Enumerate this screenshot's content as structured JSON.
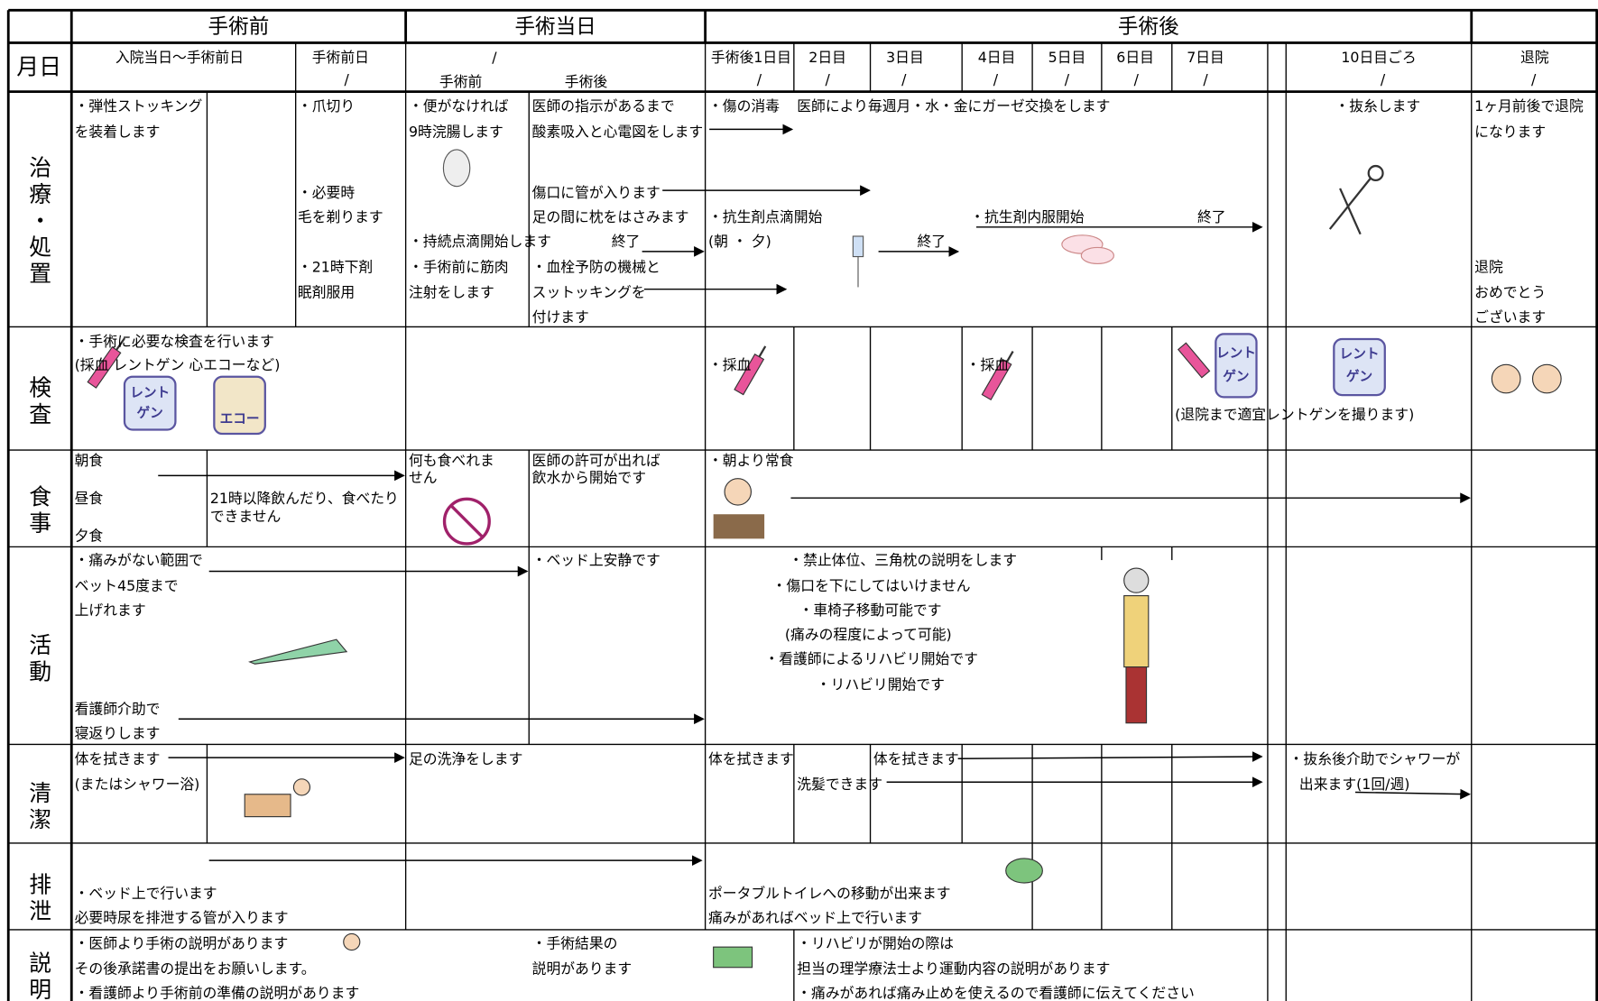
{
  "header": {
    "phases": [
      "手術前",
      "手術当日",
      "手術後"
    ],
    "date_label": "月日",
    "columns": [
      "入院当日〜手術前日",
      "手術前日",
      "手術後1日目",
      "2日目",
      "3日目",
      "4日目",
      "5日目",
      "6日目",
      "7日目",
      "10日目ごろ",
      "退院"
    ],
    "same_day_parts": [
      "手術前",
      "手術後"
    ],
    "date_slashes": [
      "/",
      "/",
      "/",
      "/",
      "/",
      "/",
      "/",
      "/",
      "/",
      "/",
      "/"
    ]
  },
  "rows": [
    {
      "label": "治療・処置",
      "lines": [
        "・弾性ストッキング",
        "を装着します",
        "・爪切り",
        "・必要時",
        "毛を剃ります",
        "・21時下剤",
        "眠剤服用",
        "・便がなければ",
        "9時浣腸します",
        "医師の指示があるまで",
        "酸素吸入と心電図をします",
        "傷口に管が入ります",
        "足の間に枕をはさみます",
        "・持続点滴開始します",
        "終了",
        "・手術前に筋肉",
        "注射をします",
        "・血栓予防の機械と",
        "スットッキングを",
        "付けます",
        "・傷の消毒",
        "医師により毎週月・水・金にガーゼ交換をします",
        "・抗生剤点滴開始",
        "(朝 ・ 夕)",
        "終了",
        "・抗生剤内服開始",
        "終了",
        "・抜糸します",
        "1ヶ月前後で退院",
        "になります",
        "退院",
        "おめでとう",
        "ございます"
      ]
    },
    {
      "label": "検査",
      "lines": [
        "・手術に必要な検査を行います",
        "(採血 レントゲン 心エコーなど)",
        "・採血",
        "・採血",
        "(退院まで適宜レントゲンを撮ります)"
      ]
    },
    {
      "label": "食事",
      "lines": [
        "朝食",
        "昼食",
        "夕食",
        "21時以降飲んだり、食べたり",
        "できません",
        "何も食べれま",
        "せん",
        "医師の許可が出れば",
        "飲水から開始です",
        "・朝より常食"
      ]
    },
    {
      "label": "活動",
      "lines": [
        "・痛みがない範囲で",
        "ベット45度まで",
        "上げれます",
        "看護師介助で",
        "寝返りします",
        "・ベッド上安静です",
        "・禁止体位、三角枕の説明をします",
        "・傷口を下にしてはいけません",
        "・車椅子移動可能です",
        "(痛みの程度によって可能)",
        "・看護師によるリハビリ開始です",
        "・リハビリ開始です"
      ]
    },
    {
      "label": "清潔",
      "lines": [
        "体を拭きます",
        "(またはシャワー浴)",
        "足の洗浄をします",
        "体を拭きます",
        "体を拭きます",
        "洗髪できます",
        "・抜糸後介助でシャワーが",
        "出来ます(1回/週)"
      ]
    },
    {
      "label": "排泄",
      "lines": [
        "・ベッド上で行います",
        "必要時尿を排泄する管が入ります",
        "ポータブルトイレへの移動が出来ます",
        "痛みがあればベッド上で行います"
      ]
    },
    {
      "label": "説明",
      "lines": [
        "・医師より手術の説明があります",
        "その後承諾書の提出をお願いします。",
        "・看護師より手術前の準備の説明があります",
        "・手術結果の",
        "説明があります",
        "・リハビリが開始の際は",
        "担当の理学療法士より運動内容の説明があります",
        "・痛みがあれば痛み止めを使えるので看護師に伝えてください"
      ]
    }
  ],
  "icon_texts": [
    [
      "レント",
      "ゲン"
    ],
    [
      "エコー"
    ],
    [
      "レント",
      "ゲン"
    ],
    [
      "レント",
      "ゲン"
    ]
  ]
}
